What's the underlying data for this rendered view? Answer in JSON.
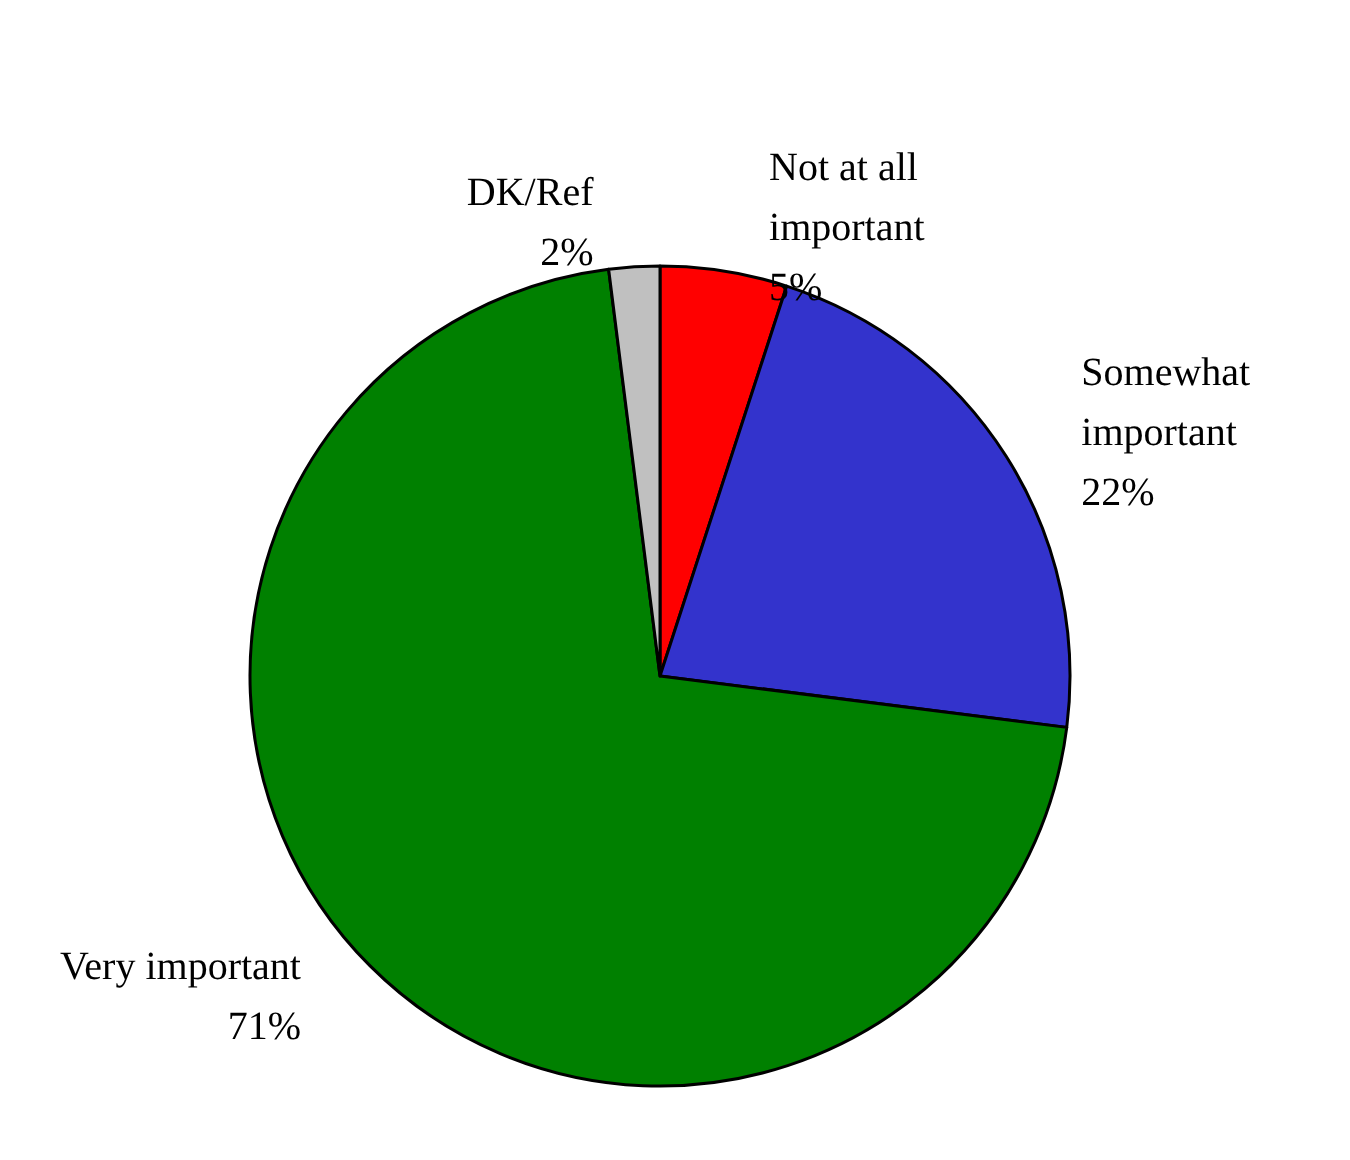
{
  "chart_data": {
    "type": "pie",
    "categories": [
      "Not at all important",
      "Somewhat important",
      "Very important",
      "DK/Ref"
    ],
    "values": [
      5,
      22,
      71,
      2
    ],
    "value_labels": [
      "5%",
      "22%",
      "71%",
      "2%"
    ],
    "colors": [
      "#ff0000",
      "#3333cc",
      "#008000",
      "#c0c0c0"
    ],
    "legend": false
  }
}
